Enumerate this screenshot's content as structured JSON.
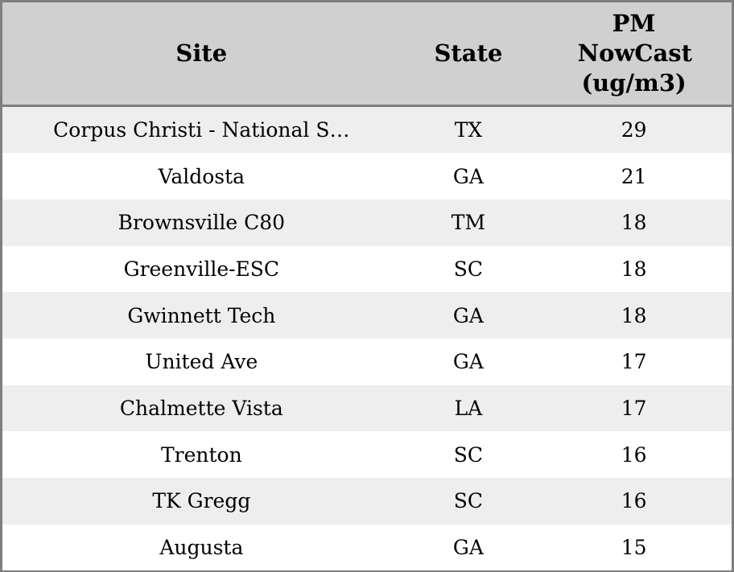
{
  "table": {
    "columns": [
      {
        "key": "site",
        "label": "Site"
      },
      {
        "key": "state",
        "label": "State"
      },
      {
        "key": "value",
        "label": "PM NowCast (ug/m3)"
      }
    ],
    "rows": [
      {
        "site": "Corpus Christi - National S…",
        "state": "TX",
        "value": "29"
      },
      {
        "site": "Valdosta",
        "state": "GA",
        "value": "21"
      },
      {
        "site": "Brownsville C80",
        "state": "TM",
        "value": "18"
      },
      {
        "site": "Greenville-ESC",
        "state": "SC",
        "value": "18"
      },
      {
        "site": "Gwinnett Tech",
        "state": "GA",
        "value": "18"
      },
      {
        "site": "United Ave",
        "state": "GA",
        "value": "17"
      },
      {
        "site": "Chalmette Vista",
        "state": "LA",
        "value": "17"
      },
      {
        "site": "Trenton",
        "state": "SC",
        "value": "16"
      },
      {
        "site": "TK Gregg",
        "state": "SC",
        "value": "16"
      },
      {
        "site": "Augusta",
        "state": "GA",
        "value": "15"
      }
    ],
    "colors": {
      "header_bg": "#d0d0d0",
      "row_odd_bg": "#eeeeee",
      "row_even_bg": "#ffffff",
      "border": "#7f7f7f",
      "text": "#000000"
    }
  },
  "chart_data": {
    "type": "table",
    "title": "",
    "columns": [
      "Site",
      "State",
      "PM NowCast (ug/m3)"
    ],
    "rows": [
      [
        "Corpus Christi - National S…",
        "TX",
        29
      ],
      [
        "Valdosta",
        "GA",
        21
      ],
      [
        "Brownsville C80",
        "TM",
        18
      ],
      [
        "Greenville-ESC",
        "SC",
        18
      ],
      [
        "Gwinnett Tech",
        "GA",
        18
      ],
      [
        "United Ave",
        "GA",
        17
      ],
      [
        "Chalmette Vista",
        "LA",
        17
      ],
      [
        "Trenton",
        "SC",
        16
      ],
      [
        "TK Gregg",
        "SC",
        16
      ],
      [
        "Augusta",
        "GA",
        15
      ]
    ],
    "value_unit": "ug/m3",
    "layout": {
      "row_striping": true,
      "header_bold": true,
      "alignment": "center"
    }
  }
}
